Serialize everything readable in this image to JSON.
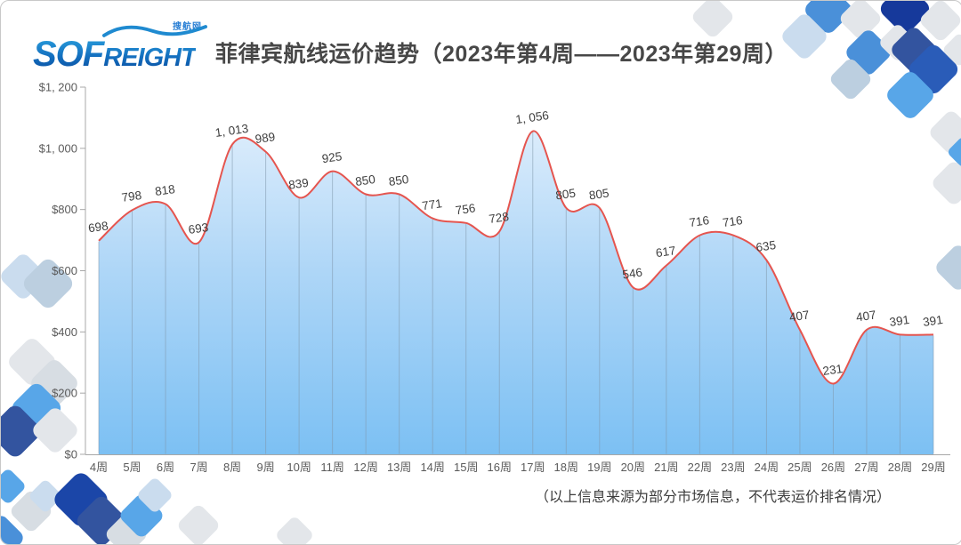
{
  "header": {
    "logo": {
      "part1": "SOF",
      "part2": "REIGHT",
      "tagline": "搜航网"
    },
    "title": "菲律宾航线运价趋势（2023年第4周——2023年第29周）"
  },
  "footnote": "（以上信息来源为部分市场信息，不代表运价排名情况）",
  "chart_data": {
    "type": "area",
    "title": "菲律宾航线运价趋势（2023年第4周——2023年第29周）",
    "categories": [
      "4周",
      "5周",
      "6周",
      "7周",
      "8周",
      "9周",
      "10周",
      "11周",
      "12周",
      "13周",
      "14周",
      "15周",
      "16周",
      "17周",
      "18周",
      "19周",
      "20周",
      "21周",
      "22周",
      "23周",
      "24周",
      "25周",
      "26周",
      "27周",
      "28周",
      "29周"
    ],
    "values": [
      698,
      798,
      818,
      693,
      1013,
      989,
      839,
      925,
      850,
      850,
      771,
      756,
      728,
      1056,
      805,
      805,
      546,
      617,
      716,
      716,
      635,
      407,
      231,
      407,
      391,
      391
    ],
    "value_labels": [
      "698",
      "798",
      "818",
      "693",
      "1, 013",
      "989",
      "839",
      "925",
      "850",
      "850",
      "771",
      "756",
      "728",
      "1, 056",
      "805",
      "805",
      "546",
      "617",
      "716",
      "716",
      "635",
      "407",
      "231",
      "407",
      "391",
      "391"
    ],
    "xlabel": "",
    "ylabel": "",
    "ylim": [
      0,
      1200
    ],
    "y_ticks": {
      "values": [
        0,
        200,
        400,
        600,
        800,
        1000,
        1200
      ],
      "labels": [
        "$0",
        "$200",
        "$400",
        "$600",
        "$800",
        "$1, 000",
        "$1, 200"
      ]
    },
    "grid": "off",
    "legend": "none",
    "line_color": "#e5554f",
    "area_gradient_top": "#e9f3fd",
    "area_gradient_mid": "#aed6f7",
    "area_gradient_bottom": "#7cc0f3",
    "drop_line_color": "#7f97ab",
    "axis_color": "#a8a8a8",
    "data_label_color": "#3f3f3f"
  },
  "theme": {
    "brand_blue": "#1371c2",
    "decor_palette": {
      "g1": "#e3e6ea",
      "g2": "#d7dde3",
      "p1": "#cadcee",
      "p2": "#bccfe0",
      "b1": "#58a6e8",
      "b2": "#4a90d9",
      "b3": "#2a5cb8",
      "n1": "#16399b",
      "n2": "#33549f",
      "n3": "#1b46a8"
    }
  }
}
